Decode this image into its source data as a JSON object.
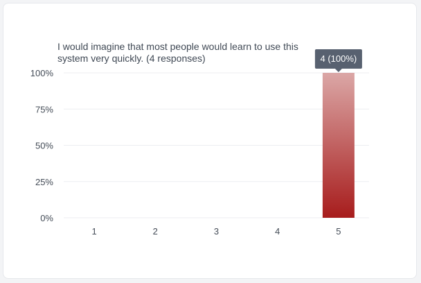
{
  "chart_data": {
    "type": "bar",
    "title": "I would imagine that most people would learn to use this system very quickly. (4 responses)",
    "categories": [
      "1",
      "2",
      "3",
      "4",
      "5"
    ],
    "values": [
      0,
      0,
      0,
      0,
      100
    ],
    "counts": [
      0,
      0,
      0,
      0,
      4
    ],
    "ylim": [
      0,
      100
    ],
    "yticks": [
      "0%",
      "25%",
      "50%",
      "75%",
      "100%"
    ],
    "xlabel": "",
    "ylabel": "",
    "grid": true,
    "bar_color_top": "#dba7a6",
    "bar_color_bottom": "#a71c1c",
    "tooltip": "4 (100%)",
    "tooltip_color": "#586170"
  }
}
